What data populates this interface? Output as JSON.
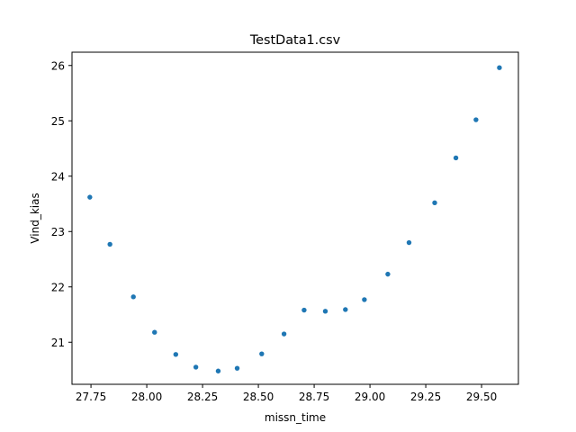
{
  "chart_data": {
    "type": "scatter",
    "title": "TestData1.csv",
    "xlabel": "missn_time",
    "ylabel": "Vind_kias",
    "xlim": [
      27.665,
      29.665
    ],
    "ylim": [
      20.24,
      26.24
    ],
    "xticks": [
      27.75,
      28.0,
      28.25,
      28.5,
      28.75,
      29.0,
      29.25,
      29.5
    ],
    "xtick_labels": [
      "27.75",
      "28.00",
      "28.25",
      "28.50",
      "28.75",
      "29.00",
      "29.25",
      "29.50"
    ],
    "yticks": [
      21,
      22,
      23,
      24,
      25,
      26
    ],
    "ytick_labels": [
      "21",
      "22",
      "23",
      "24",
      "25",
      "26"
    ],
    "grid": false,
    "marker_color": "#1f77b4",
    "x": [
      27.745,
      27.835,
      27.94,
      28.035,
      28.13,
      28.22,
      28.32,
      28.405,
      28.515,
      28.615,
      28.705,
      28.8,
      28.89,
      28.975,
      29.08,
      29.175,
      29.29,
      29.385,
      29.475,
      29.58
    ],
    "y": [
      23.62,
      22.77,
      21.82,
      21.18,
      20.78,
      20.55,
      20.48,
      20.53,
      20.79,
      21.15,
      21.58,
      21.56,
      21.59,
      21.77,
      22.23,
      22.8,
      23.52,
      24.33,
      25.02,
      25.96
    ]
  }
}
